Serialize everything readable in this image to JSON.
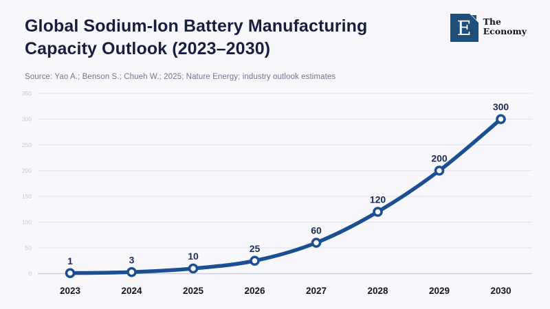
{
  "header": {
    "title": "Global Sodium-Ion Battery Manufacturing Capacity Outlook (2023–2030)",
    "source": "Source: Yao A.; Benson S.; Chueh W.; 2025; Nature Energy; industry outlook estimates",
    "logo": {
      "monogram": "E",
      "name_line1": "The",
      "name_line2": "Economy"
    }
  },
  "colors": {
    "background": "#f8f8fc",
    "line": "#1b4f93",
    "marker_fill": "#ffffff",
    "data_label": "#1b2d55",
    "grid": "#e2e5f0",
    "axis_zero_line": "#c9cdd8",
    "y_tick_label": "#c3c8d6",
    "x_tick_label": "#15151f",
    "logo_blue": "#1f4e79"
  },
  "chart_data": {
    "type": "line",
    "title": "Global Sodium-Ion Battery Manufacturing Capacity Outlook (2023–2030)",
    "xlabel": "",
    "ylabel": "",
    "categories": [
      "2023",
      "2024",
      "2025",
      "2026",
      "2027",
      "2028",
      "2029",
      "2030"
    ],
    "values": [
      1,
      3,
      10,
      25,
      60,
      120,
      200,
      300
    ],
    "data_labels": [
      "1",
      "3",
      "10",
      "25",
      "60",
      "120",
      "200",
      "300"
    ],
    "ylim": [
      0,
      350
    ],
    "yticks": [
      0,
      50,
      100,
      150,
      200,
      250,
      300,
      350
    ],
    "grid": true,
    "legend": "none",
    "marker": "open-circle"
  }
}
